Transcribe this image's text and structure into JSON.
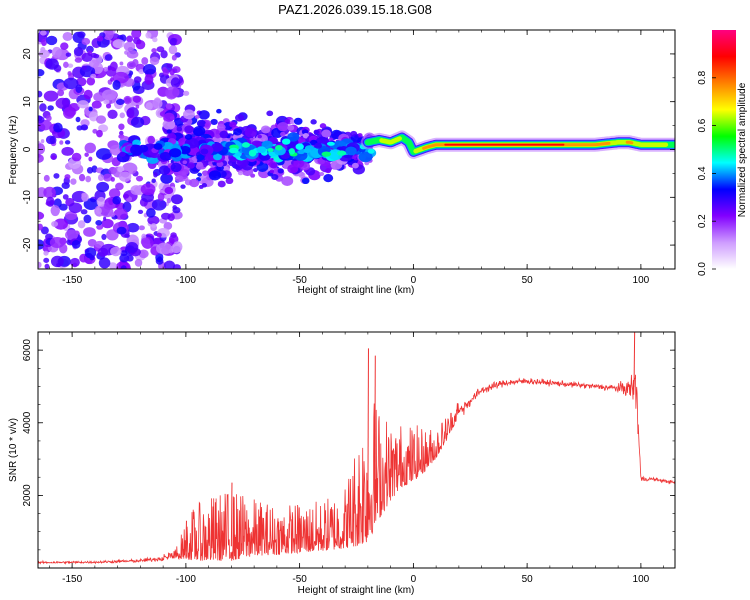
{
  "title": "PAZ1.2026.039.15.18.G08",
  "chart_data": [
    {
      "type": "heatmap",
      "name": "spectrogram",
      "xlabel": "Height of straight line (km)",
      "ylabel": "Frequency (Hz)",
      "xlim": [
        -165,
        115
      ],
      "ylim": [
        -25,
        25
      ],
      "xticks": [
        -150,
        -100,
        -50,
        0,
        50,
        100
      ],
      "yticks": [
        -20,
        -10,
        0,
        10,
        20
      ],
      "colorbar": {
        "label": "Normalized spectral amplitude",
        "range": [
          0,
          1
        ],
        "ticks": [
          "0.0",
          "0.2",
          "0.4",
          "0.6",
          "0.8"
        ],
        "tick_values": [
          0,
          0.2,
          0.4,
          0.6,
          0.8
        ],
        "colors": [
          "#ffffff",
          "#ce9cff",
          "#8200ff",
          "#0000ff",
          "#00ffff",
          "#00ff00",
          "#ffff00",
          "#ff8000",
          "#ff0000",
          "#ff0080"
        ]
      },
      "signal_track": {
        "x": [
          -20,
          -15,
          -10,
          -5,
          -2,
          0,
          3,
          6,
          10,
          20,
          40,
          60,
          70,
          80,
          90,
          95,
          100,
          105,
          115
        ],
        "freq_hz": [
          1.5,
          2.0,
          1.5,
          2.5,
          1.5,
          -0.5,
          0.0,
          0.5,
          1.0,
          1.0,
          1.0,
          1.0,
          1.0,
          1.0,
          1.5,
          1.5,
          1.0,
          1.0,
          1.0
        ],
        "amplitude": [
          0.5,
          0.6,
          0.7,
          0.6,
          0.5,
          0.6,
          0.7,
          0.8,
          0.85,
          0.9,
          0.9,
          0.9,
          0.85,
          0.8,
          0.7,
          0.75,
          0.7,
          0.65,
          0.6
        ]
      }
    },
    {
      "type": "line",
      "name": "snr",
      "xlabel": "Height of straight line (km)",
      "ylabel": "SNR (10 * v/v)",
      "xlim": [
        -165,
        115
      ],
      "ylim": [
        0,
        6500
      ],
      "xticks": [
        -150,
        -100,
        -50,
        0,
        50,
        100
      ],
      "yticks": [
        2000,
        4000,
        6000
      ],
      "color": "#ee3333",
      "envelope": {
        "x": [
          -165,
          -140,
          -120,
          -105,
          -100,
          -98,
          -90,
          -80,
          -70,
          -60,
          -50,
          -40,
          -30,
          -25,
          -20,
          -15,
          -10,
          -5,
          0,
          5,
          10,
          15,
          20,
          30,
          40,
          50,
          60,
          70,
          80,
          90,
          95,
          98,
          100,
          105,
          110,
          115
        ],
        "base": [
          150,
          160,
          200,
          300,
          450,
          500,
          550,
          600,
          650,
          650,
          700,
          750,
          900,
          1200,
          1600,
          2000,
          2300,
          2600,
          2700,
          2900,
          3200,
          3700,
          4300,
          4900,
          5100,
          5150,
          5100,
          5050,
          5000,
          4950,
          4950,
          5000,
          2450,
          2450,
          2400,
          2350
        ],
        "noise": [
          40,
          40,
          60,
          120,
          500,
          700,
          900,
          1000,
          800,
          700,
          700,
          700,
          900,
          1500,
          2200,
          1600,
          1100,
          900,
          800,
          600,
          450,
          350,
          250,
          150,
          120,
          120,
          100,
          100,
          100,
          150,
          350,
          900,
          100,
          60,
          60,
          60
        ]
      },
      "peaks": [
        {
          "x": -20,
          "y": 6050
        },
        {
          "x": -17,
          "y": 5850
        },
        {
          "x": 97,
          "y": 6500
        },
        {
          "x": -80,
          "y": 2350
        },
        {
          "x": -100,
          "y": 1300
        }
      ]
    }
  ]
}
